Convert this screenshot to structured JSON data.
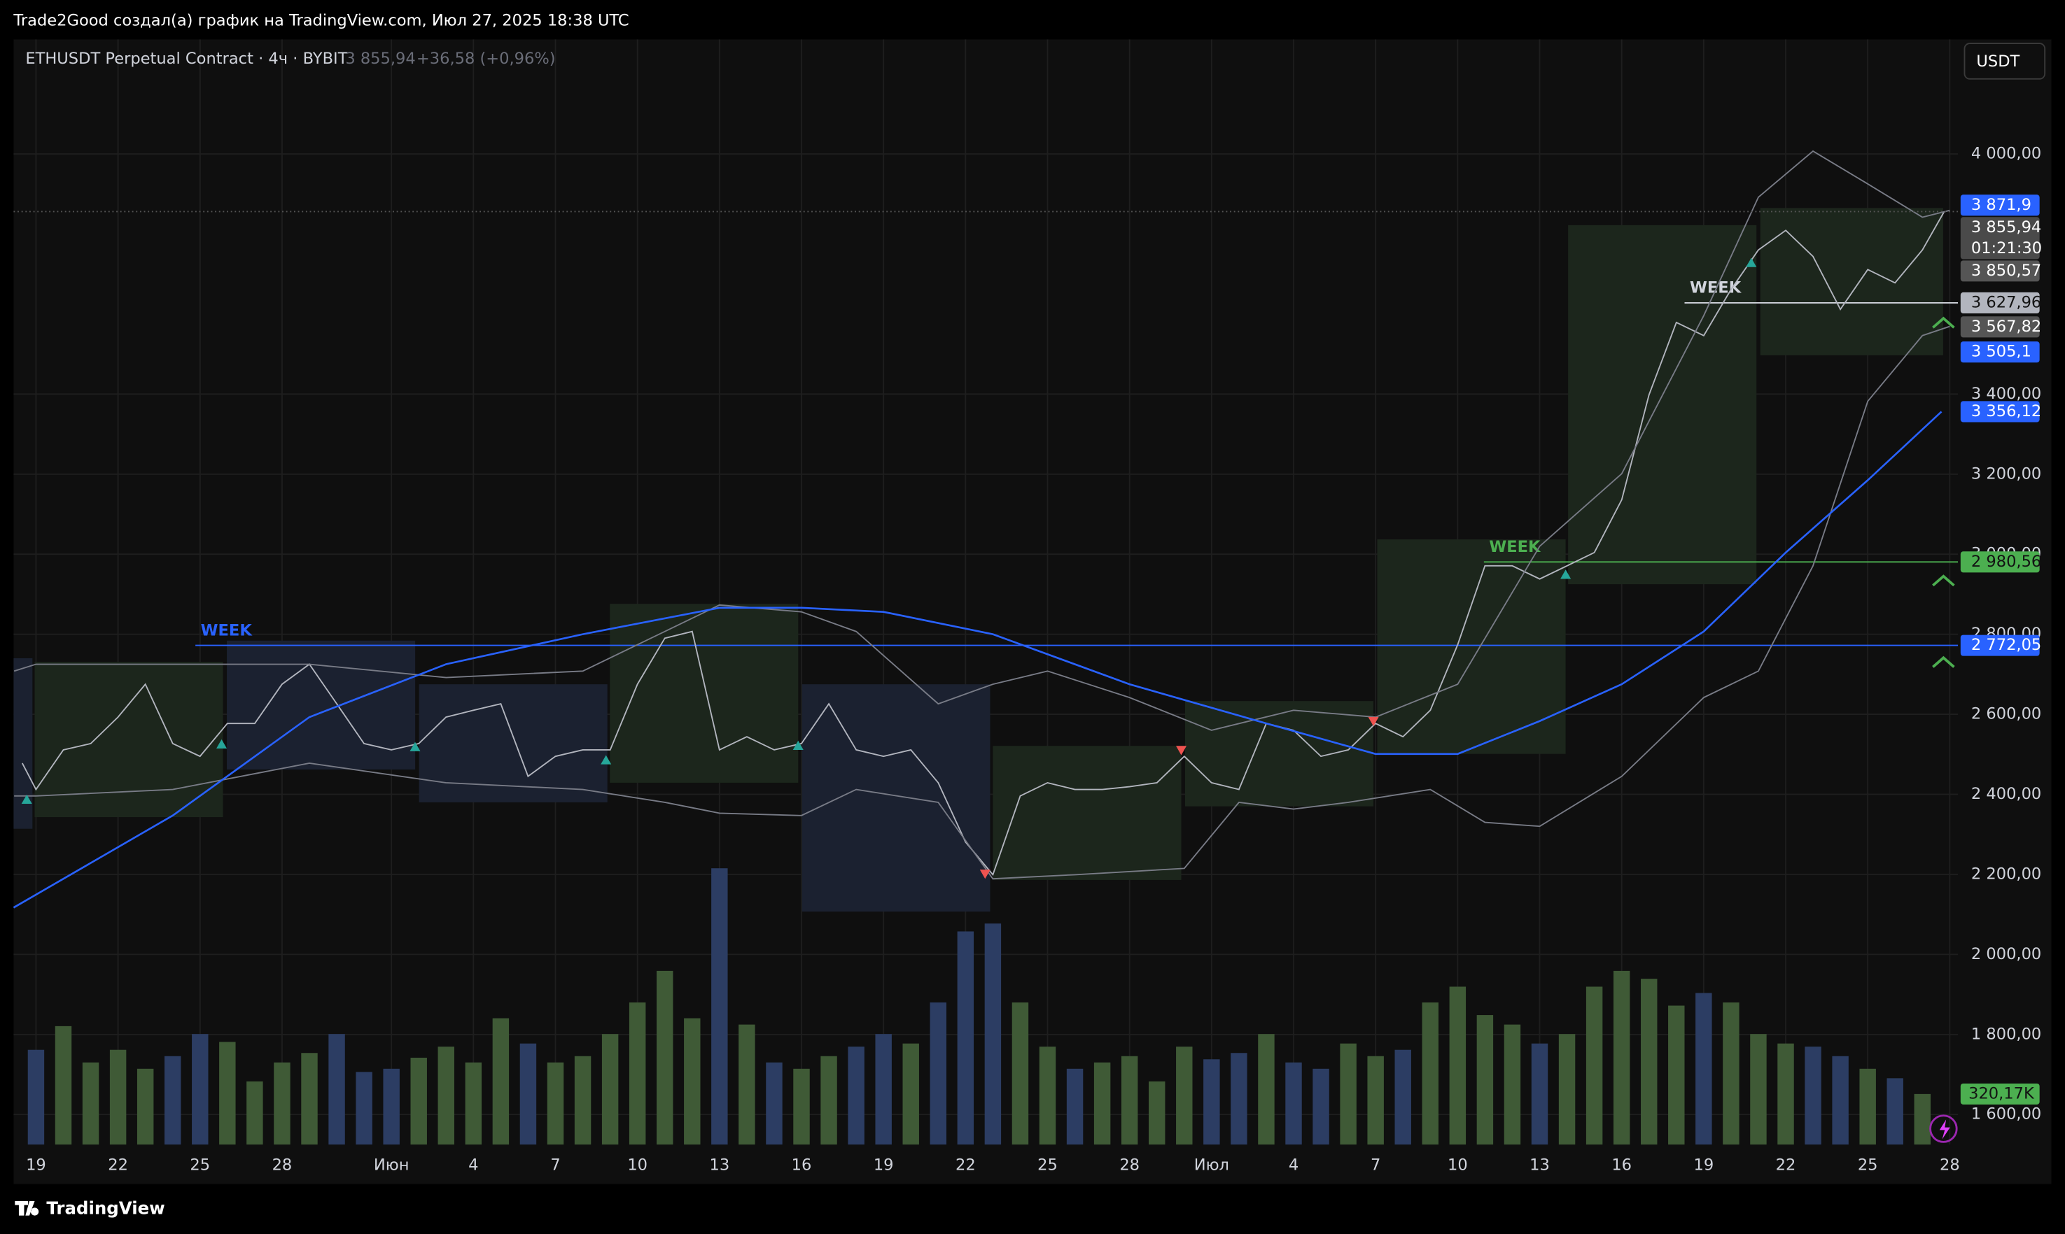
{
  "header": {
    "attribution": "Trade2Good создал(а) график на TradingView.com, Июл 27, 2025 18:38 UTC",
    "currency_button": "USDT",
    "footer_logo": "TradingView"
  },
  "legend": {
    "symbol": "ETHUSDT Perpetual Contract · 4ч · BYBIT",
    "price": "3 855,94",
    "change": "+36,58 (+0,96%)"
  },
  "chart_data": {
    "type": "line",
    "xlim": [
      -0.82,
      70.3
    ],
    "xticks": [
      {
        "value": 0,
        "label": "19"
      },
      {
        "value": 3,
        "label": "22"
      },
      {
        "value": 6,
        "label": "25"
      },
      {
        "value": 9,
        "label": "28"
      },
      {
        "value": 13,
        "label": "Июн"
      },
      {
        "value": 16,
        "label": "4"
      },
      {
        "value": 19,
        "label": "7"
      },
      {
        "value": 22,
        "label": "10"
      },
      {
        "value": 25,
        "label": "13"
      },
      {
        "value": 28,
        "label": "16"
      },
      {
        "value": 31,
        "label": "19"
      },
      {
        "value": 34,
        "label": "22"
      },
      {
        "value": 37,
        "label": "25"
      },
      {
        "value": 40,
        "label": "28"
      },
      {
        "value": 43,
        "label": "Июл"
      },
      {
        "value": 46,
        "label": "4"
      },
      {
        "value": 49,
        "label": "7"
      },
      {
        "value": 52,
        "label": "10"
      },
      {
        "value": 55,
        "label": "13"
      },
      {
        "value": 58,
        "label": "16"
      },
      {
        "value": 61,
        "label": "19"
      },
      {
        "value": 64,
        "label": "22"
      },
      {
        "value": 67,
        "label": "25"
      },
      {
        "value": 70,
        "label": "28"
      }
    ],
    "ylim": [
      1525,
      4286
    ],
    "yticks": [
      {
        "value": 4000,
        "label": "4 000,00"
      },
      {
        "value": 3400,
        "label": "3 400,00"
      },
      {
        "value": 3200,
        "label": "3 200,00"
      },
      {
        "value": 3000,
        "label": "3 000,00"
      },
      {
        "value": 2800,
        "label": "2 800,00"
      },
      {
        "value": 2600,
        "label": "2 600,00"
      },
      {
        "value": 2400,
        "label": "2 400,00"
      },
      {
        "value": 2200,
        "label": "2 200,00"
      },
      {
        "value": 2000,
        "label": "2 000,00"
      },
      {
        "value": 1800,
        "label": "1 800,00"
      },
      {
        "value": 1600,
        "label": "1 600,00"
      }
    ],
    "grid": true,
    "series": [
      {
        "color": "#b2b5be",
        "x": [
          -0.5,
          0,
          1,
          2,
          3,
          4,
          5,
          6,
          7,
          8,
          9,
          10,
          11,
          12,
          13,
          14,
          15,
          16,
          17,
          18,
          19,
          20,
          21,
          22,
          23,
          24,
          25,
          26,
          27,
          28,
          29,
          30,
          31,
          32,
          33,
          34,
          35,
          36,
          37,
          38,
          39,
          40,
          41,
          42,
          43,
          44,
          45,
          46,
          47,
          48,
          49,
          50,
          51,
          52,
          53,
          54,
          55,
          56,
          57,
          58,
          59,
          60,
          61,
          62,
          63,
          64,
          65,
          66,
          67,
          68,
          69,
          69.8
        ],
        "values": [
          2478,
          2412,
          2511,
          2527,
          2593,
          2675,
          2527,
          2495,
          2577,
          2577,
          2675,
          2725,
          2626,
          2527,
          2511,
          2527,
          2593,
          2610,
          2626,
          2445,
          2495,
          2511,
          2511,
          2675,
          2790,
          2807,
          2511,
          2544,
          2511,
          2527,
          2626,
          2511,
          2495,
          2511,
          2429,
          2281,
          2199,
          2396,
          2429,
          2412,
          2412,
          2419,
          2429,
          2495,
          2429,
          2412,
          2577,
          2560,
          2495,
          2511,
          2577,
          2544,
          2610,
          2774,
          2971,
          2971,
          2938,
          2971,
          3004,
          3136,
          3398,
          3579,
          3546,
          3661,
          3760,
          3809,
          3744,
          3612,
          3711,
          3678,
          3760,
          3855.94
        ]
      },
      {
        "color": "#787b86",
        "x": [
          -0.8,
          0,
          5,
          10,
          15,
          20,
          23,
          25,
          28,
          30,
          33,
          35,
          37,
          40,
          43,
          46,
          49,
          52,
          55,
          58,
          61,
          63,
          65,
          67,
          69,
          70
        ],
        "values": [
          2708,
          2725,
          2725,
          2725,
          2692,
          2708,
          2807,
          2873,
          2856,
          2807,
          2626,
          2675,
          2708,
          2642,
          2560,
          2610,
          2593,
          2675,
          3020,
          3201,
          3596,
          3892,
          4007,
          3925,
          3842,
          3859
        ]
      },
      {
        "color": "#787b86",
        "x": [
          -0.8,
          0,
          5,
          10,
          15,
          20,
          23,
          25,
          28,
          30,
          33,
          35,
          38,
          42,
          44,
          46,
          48,
          51,
          53,
          55,
          58,
          61,
          63,
          65,
          67,
          69,
          70
        ],
        "values": [
          2396,
          2396,
          2412,
          2478,
          2429,
          2412,
          2380,
          2353,
          2347,
          2412,
          2380,
          2189,
          2199,
          2215,
          2380,
          2363,
          2380,
          2412,
          2330,
          2320,
          2445,
          2642,
          2708,
          2971,
          3382,
          3546,
          3569
        ]
      },
      {
        "color": "#2962ff",
        "x": [
          -0.82,
          5,
          10,
          15,
          20,
          25,
          28,
          31,
          35,
          40,
          45,
          49,
          52,
          55,
          58,
          61,
          64,
          67,
          69.7
        ],
        "values": [
          2117,
          2347,
          2593,
          2725,
          2800,
          2866,
          2866,
          2856,
          2800,
          2675,
          2577,
          2501,
          2501,
          2583,
          2675,
          2807,
          3004,
          3185,
          3356.12
        ]
      }
    ],
    "volume": {
      "up_color": "#3f5a36",
      "down_color": "#2c3d63",
      "y2lim": [
        0,
        7000
      ],
      "x": [
        0,
        1,
        2,
        3,
        4,
        5,
        6,
        7,
        8,
        9,
        10,
        11,
        12,
        13,
        14,
        15,
        16,
        17,
        18,
        19,
        20,
        21,
        22,
        23,
        24,
        25,
        26,
        27,
        28,
        29,
        30,
        31,
        32,
        33,
        34,
        35,
        36,
        37,
        38,
        39,
        40,
        41,
        42,
        43,
        44,
        45,
        46,
        47,
        48,
        49,
        50,
        51,
        52,
        53,
        54,
        55,
        56,
        57,
        58,
        59,
        60,
        61,
        62,
        63,
        64,
        65,
        66,
        67,
        68,
        69
      ],
      "values": [
        600,
        750,
        520,
        600,
        480,
        560,
        700,
        650,
        400,
        520,
        580,
        700,
        460,
        480,
        550,
        620,
        520,
        800,
        640,
        520,
        560,
        700,
        900,
        1100,
        800,
        1750,
        760,
        520,
        480,
        560,
        620,
        700,
        640,
        900,
        1350,
        1400,
        900,
        620,
        480,
        520,
        560,
        400,
        620,
        540,
        580,
        700,
        520,
        480,
        640,
        560,
        600,
        900,
        1000,
        820,
        760,
        640,
        700,
        1000,
        1100,
        1050,
        880,
        960,
        900,
        700,
        640,
        620,
        560,
        480,
        420,
        320.17
      ],
      "last_label": {
        "value": 320.17,
        "label": "320,17K",
        "color": "#4caf50"
      }
    },
    "boxes": [
      {
        "x": [
          -0.82,
          -0.13
        ],
        "y": [
          2314,
          2740
        ],
        "color": "#1b2130"
      },
      {
        "x": [
          -0.05,
          6.84
        ],
        "y": [
          2343,
          2731
        ],
        "color": "#1c261c"
      },
      {
        "x": [
          6.98,
          13.87
        ],
        "y": [
          2462,
          2784
        ],
        "color": "#1b2130"
      },
      {
        "x": [
          14.01,
          20.9
        ],
        "y": [
          2380,
          2675
        ],
        "color": "#1b2130"
      },
      {
        "x": [
          20.99,
          27.88
        ],
        "y": [
          2429,
          2876
        ],
        "color": "#1c261c"
      },
      {
        "x": [
          28.02,
          34.9
        ],
        "y": [
          2107,
          2675
        ],
        "color": "#1b2130"
      },
      {
        "x": [
          35.0,
          41.89
        ],
        "y": [
          2186,
          2521
        ],
        "color": "#1c261c"
      },
      {
        "x": [
          42.03,
          48.92
        ],
        "y": [
          2370,
          2633
        ],
        "color": "#1c261c"
      },
      {
        "x": [
          49.06,
          55.95
        ],
        "y": [
          2501,
          3037
        ],
        "color": "#1c261c"
      },
      {
        "x": [
          56.04,
          62.93
        ],
        "y": [
          2925,
          3822
        ],
        "color": "#1c261c"
      },
      {
        "x": [
          63.07,
          69.76
        ],
        "y": [
          3497,
          3865
        ],
        "color": "#1c261c"
      }
    ],
    "levels": [
      {
        "label": "WEEK",
        "value": 2772.05,
        "x": 5.83,
        "color": "#2962ff"
      },
      {
        "label": "WEEK",
        "value": 2980.56,
        "x": 52.96,
        "color": "#4caf50"
      },
      {
        "label": "WEEK",
        "value": 3627.96,
        "x": 60.3,
        "color": "#d1d4dc"
      }
    ],
    "price_labels": [
      {
        "value": 3871.9,
        "label": "3 871,9",
        "color": "#2962ff",
        "text_color": "#ffffff"
      },
      {
        "value": 3855.94,
        "label": "3 855,94",
        "sub": "01:21:30",
        "color": "#4a4a4a",
        "text_color": "#ffffff"
      },
      {
        "value": 3850.57,
        "label": "3 850,57",
        "color": "#555555",
        "text_color": "#ffffff"
      },
      {
        "value": 3627.96,
        "label": "3 627,96",
        "color": "#b2b5be",
        "text_color": "#131313"
      },
      {
        "value": 3567.82,
        "label": "3 567,82",
        "color": "#555555",
        "text_color": "#ffffff"
      },
      {
        "value": 3505.1,
        "label": "3 505,1",
        "color": "#2962ff",
        "text_color": "#ffffff"
      },
      {
        "value": 3356.12,
        "label": "3 356,12",
        "color": "#2962ff",
        "text_color": "#ffffff"
      },
      {
        "value": 2980.56,
        "label": "2 980,56",
        "color": "#4caf50",
        "text_color": "#131313"
      },
      {
        "value": 2772.05,
        "label": "2 772,05",
        "color": "#2962ff",
        "text_color": "#ffffff"
      }
    ]
  }
}
